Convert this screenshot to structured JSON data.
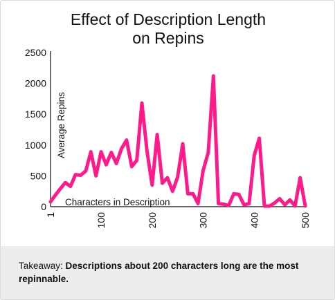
{
  "colors": {
    "line": "#ff1a8c",
    "axis": "#111111",
    "footer_bg": "#ededed"
  },
  "chart_data": {
    "type": "line",
    "title_line1": "Effect of Description Length",
    "title_line2": "on Repins",
    "xlabel": "Characters in Description",
    "ylabel": "Average  Repins",
    "xlim": [
      1,
      500
    ],
    "ylim": [
      0,
      2500
    ],
    "yticks": [
      0,
      500,
      1000,
      1500,
      2000,
      2500
    ],
    "xticks": [
      1,
      100,
      200,
      300,
      400,
      500
    ],
    "grid": false,
    "legend": "none",
    "series": [
      {
        "x": [
          1,
          10,
          20,
          30,
          40,
          50,
          60,
          70,
          80,
          90,
          100,
          110,
          120,
          130,
          140,
          150,
          160,
          170,
          180,
          190,
          200,
          210,
          220,
          230,
          240,
          250,
          260,
          270,
          280,
          290,
          300,
          310,
          320,
          330,
          340,
          350,
          360,
          370,
          380,
          390,
          400,
          410,
          420,
          430,
          440,
          450,
          460,
          470,
          480,
          490,
          500
        ],
        "y": [
          80,
          180,
          290,
          390,
          330,
          520,
          510,
          580,
          890,
          500,
          890,
          680,
          880,
          700,
          940,
          1080,
          650,
          750,
          1680,
          900,
          350,
          1170,
          380,
          470,
          250,
          480,
          1020,
          210,
          210,
          50,
          590,
          880,
          2120,
          50,
          40,
          20,
          210,
          200,
          30,
          50,
          830,
          1110,
          10,
          10,
          60,
          130,
          30,
          110,
          10,
          470,
          10
        ]
      }
    ]
  },
  "footer": {
    "prefix": "Takeaway: ",
    "bold": "Descriptions about 200 characters long are the most repinnable."
  }
}
